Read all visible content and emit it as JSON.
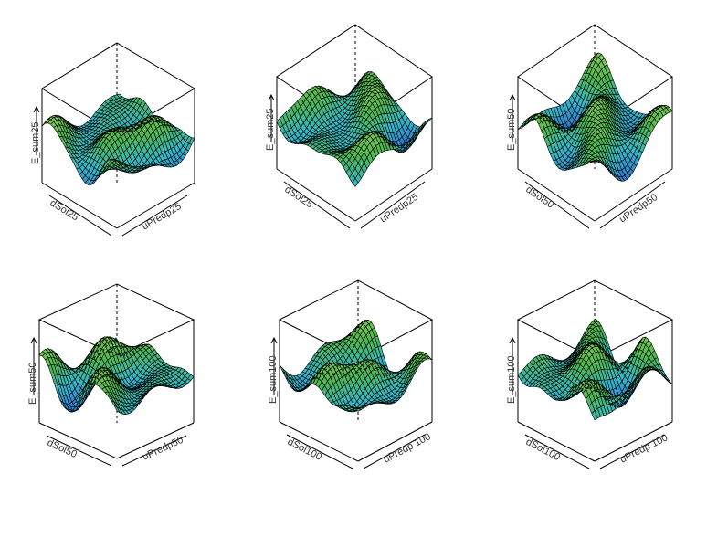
{
  "chart_data": [
    {
      "type": "surface",
      "xlabel": "dSol25",
      "ylabel": "uPredp25",
      "zlabel": "E_sum25",
      "colormap": [
        "#1a237e",
        "#2f6fd0",
        "#35b8c8",
        "#4fb84f",
        "#8fd05a",
        "#d9efb8"
      ]
    },
    {
      "type": "surface",
      "xlabel": "dSol25",
      "ylabel": "uPredp25",
      "zlabel": "E_sum25",
      "colormap": [
        "#1a237e",
        "#2f6fd0",
        "#35b8c8",
        "#4fb84f",
        "#8fd05a",
        "#d9efb8"
      ]
    },
    {
      "type": "surface",
      "xlabel": "dSol50",
      "ylabel": "uPredp50",
      "zlabel": "E_sum50",
      "colormap": [
        "#1a237e",
        "#2f6fd0",
        "#35b8c8",
        "#4fb84f",
        "#8fd05a",
        "#d9efb8"
      ]
    },
    {
      "type": "surface",
      "xlabel": "dSol50",
      "ylabel": "uPredp50",
      "zlabel": "E_sum50",
      "colormap": [
        "#1a237e",
        "#2f6fd0",
        "#35b8c8",
        "#4fb84f",
        "#8fd05a",
        "#d9efb8"
      ]
    },
    {
      "type": "surface",
      "xlabel": "dSol100",
      "ylabel": "uPredp 100",
      "zlabel": "E_sum100",
      "colormap": [
        "#1a237e",
        "#2f6fd0",
        "#35b8c8",
        "#4fb84f",
        "#8fd05a",
        "#d9efb8"
      ]
    },
    {
      "type": "surface",
      "xlabel": "dSol100",
      "ylabel": "uPredp 100",
      "zlabel": "E_sum100",
      "colormap": [
        "#1a237e",
        "#2f6fd0",
        "#35b8c8",
        "#4fb84f",
        "#8fd05a",
        "#d9efb8"
      ]
    }
  ]
}
